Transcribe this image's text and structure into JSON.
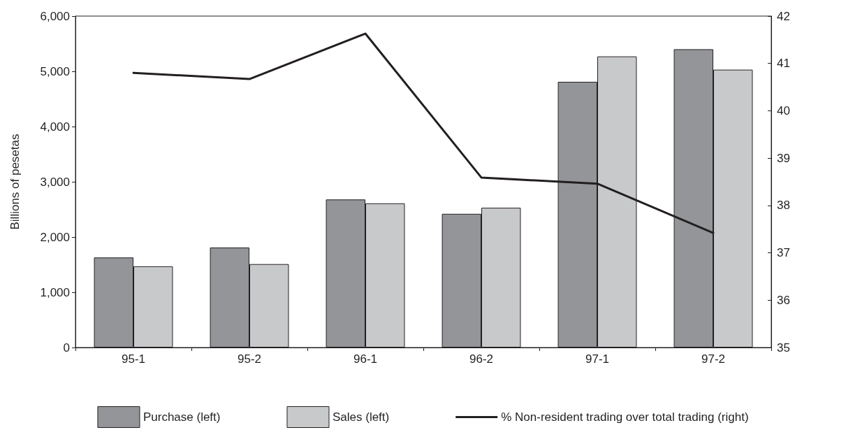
{
  "chart_data": {
    "type": "bar",
    "ylabel": "Billions of pesetas",
    "categories": [
      "95-1",
      "95-2",
      "96-1",
      "96-2",
      "97-1",
      "97-2"
    ],
    "series": [
      {
        "name": "Purchase (left)",
        "color": "#939598",
        "values": [
          1630,
          1810,
          2680,
          2420,
          4810,
          5400
        ]
      },
      {
        "name": "Sales (left)",
        "color": "#c8c9cb",
        "values": [
          1470,
          1510,
          2610,
          2530,
          5270,
          5030
        ]
      },
      {
        "name": "% Non-resident trading over total trading (right)",
        "type": "line",
        "axis": "y2",
        "color": "#231f20",
        "values": [
          40.8,
          40.67,
          41.63,
          38.59,
          38.46,
          37.42
        ]
      }
    ],
    "ylim": [
      0,
      6000
    ],
    "yticks": [
      0,
      {
        "value": 1000,
        "label": "1,000"
      },
      {
        "value": 2000,
        "label": "2,000"
      },
      {
        "value": 3000,
        "label": "3,000"
      },
      {
        "value": 4000,
        "label": "4,000"
      },
      {
        "value": 5000,
        "label": "5,000"
      },
      {
        "value": 6000,
        "label": "6,000"
      }
    ],
    "y2lim": [
      35,
      42
    ],
    "y2ticks": [
      35,
      36,
      37,
      38,
      39,
      40,
      41,
      42
    ],
    "legend": "bottom",
    "grid": false,
    "marker": "none",
    "line_style": "solid"
  }
}
